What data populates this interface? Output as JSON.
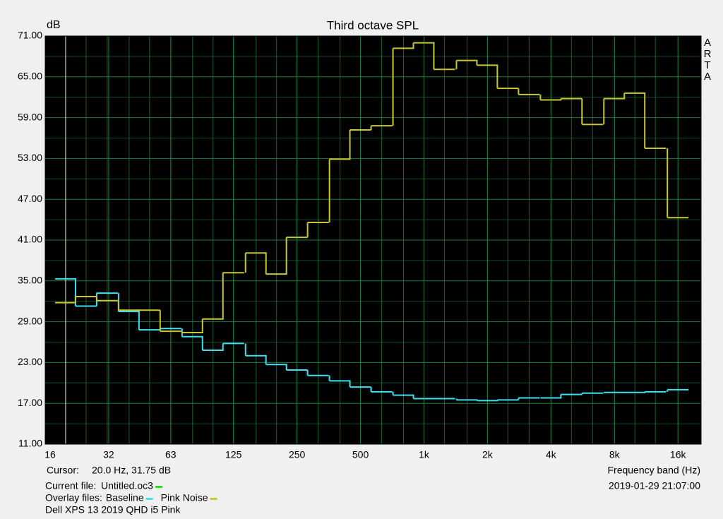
{
  "chart_data": {
    "type": "step",
    "title": "Third octave SPL",
    "y_label": "dB",
    "x_label": "Frequency band (Hz)",
    "brand": [
      "A",
      "R",
      "T",
      "A"
    ],
    "x": [
      20,
      25,
      31.5,
      40,
      50,
      63,
      80,
      100,
      125,
      160,
      200,
      250,
      315,
      400,
      500,
      630,
      800,
      1000,
      1250,
      1600,
      2000,
      2500,
      3150,
      4000,
      5000,
      6300,
      8000,
      10000,
      12500,
      16000
    ],
    "series": [
      {
        "name": "Baseline",
        "color": "#40e0f0",
        "values": [
          35.3,
          31.3,
          33.2,
          30.5,
          27.8,
          28.0,
          26.8,
          24.8,
          25.8,
          24.0,
          22.7,
          21.9,
          21.1,
          20.3,
          19.4,
          18.7,
          18.2,
          17.7,
          17.7,
          17.5,
          17.4,
          17.5,
          17.8,
          17.8,
          18.3,
          18.5,
          18.6,
          18.6,
          18.7,
          19.0
        ]
      },
      {
        "name": "Pink Noise",
        "color": "#c8c832",
        "values": [
          31.8,
          32.7,
          32.1,
          30.7,
          30.7,
          27.6,
          27.4,
          29.4,
          36.2,
          39.1,
          36.0,
          41.4,
          43.6,
          52.9,
          57.2,
          57.8,
          69.2,
          70.0,
          66.1,
          67.4,
          66.7,
          63.3,
          62.4,
          61.6,
          61.8,
          58.0,
          61.8,
          62.6,
          54.5,
          44.3
        ]
      }
    ],
    "xlim": [
      16,
      20600
    ],
    "xscale": "log",
    "xticks": [
      16,
      32,
      63,
      125,
      250,
      500,
      {
        "value": 1000,
        "label": "1k"
      },
      {
        "value": 2000,
        "label": "2k"
      },
      {
        "value": 4000,
        "label": "4k"
      },
      {
        "value": 8000,
        "label": "8k"
      },
      {
        "value": 16000,
        "label": "16k"
      }
    ],
    "ylim": [
      11,
      71
    ],
    "yticks": [
      {
        "value": 11,
        "label": "11.00"
      },
      {
        "value": 17,
        "label": "17.00"
      },
      {
        "value": 23,
        "label": "23.00"
      },
      {
        "value": 29,
        "label": "29.00"
      },
      {
        "value": 35,
        "label": "35.00"
      },
      {
        "value": 41,
        "label": "41.00"
      },
      {
        "value": 47,
        "label": "47.00"
      },
      {
        "value": 53,
        "label": "53.00"
      },
      {
        "value": 59,
        "label": "59.00"
      },
      {
        "value": 65,
        "label": "65.00"
      },
      {
        "value": 71,
        "label": "71.00"
      }
    ],
    "grid": true,
    "grid_color": "#1e7a3c",
    "plot_background": "#000000",
    "cursor": {
      "label": "Cursor:",
      "readout": "20.0 Hz, 31.75 dB",
      "x": 20,
      "color": "#f0e8c0"
    },
    "current_file": {
      "label": "Current file:",
      "name": "Untitled.oc3",
      "color": "#20e020"
    },
    "overlay_label": "Overlay files:",
    "file_title": "Dell XPS 13 2019 QHD i5 Pink",
    "timestamp": "2019-01-29  21:07:00"
  }
}
